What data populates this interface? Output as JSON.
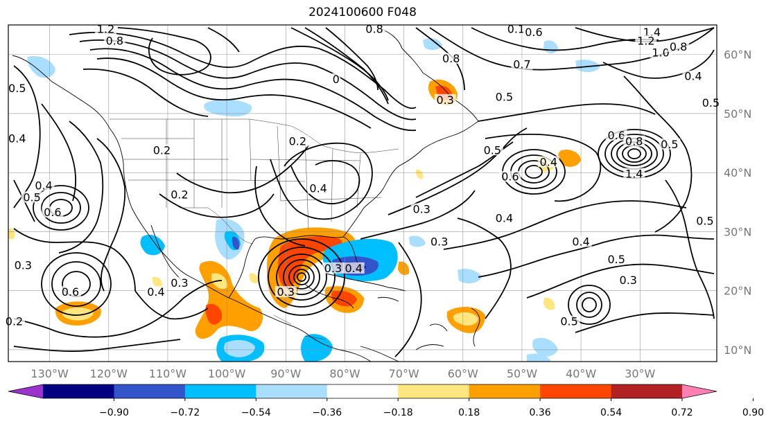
{
  "title": "2024100600 F048",
  "map": {
    "lon_ticks": [
      "130°W",
      "120°W",
      "110°W",
      "100°W",
      "90°W",
      "80°W",
      "70°W",
      "60°W",
      "50°W",
      "40°W",
      "30°W"
    ],
    "lat_ticks": [
      "60°N",
      "50°N",
      "40°N",
      "30°N",
      "20°N",
      "10°N"
    ],
    "lon_range": [
      -137,
      -17
    ],
    "lat_range": [
      8,
      65
    ],
    "gridlines": true,
    "contour_color": "#000000"
  },
  "contour_labels": [
    {
      "text": "1.2",
      "lon": -120.5,
      "lat": 64
    },
    {
      "text": "0.8",
      "lon": -119,
      "lat": 62
    },
    {
      "text": "0.5",
      "lon": -135.5,
      "lat": 54
    },
    {
      "text": "0.4",
      "lon": -135.5,
      "lat": 45.5
    },
    {
      "text": "0.4",
      "lon": -131,
      "lat": 37.5
    },
    {
      "text": "0.5",
      "lon": -133,
      "lat": 35.5
    },
    {
      "text": "0.6",
      "lon": -129.5,
      "lat": 33
    },
    {
      "text": "0.3",
      "lon": -134.5,
      "lat": 24
    },
    {
      "text": "0.6",
      "lon": -126.5,
      "lat": 19.5
    },
    {
      "text": "0.2",
      "lon": -136,
      "lat": 14.5
    },
    {
      "text": "0.3",
      "lon": -108,
      "lat": 21
    },
    {
      "text": "0.4",
      "lon": -112,
      "lat": 19.5
    },
    {
      "text": "0.2",
      "lon": -108,
      "lat": 36
    },
    {
      "text": "0.2",
      "lon": -111,
      "lat": 43.5
    },
    {
      "text": "0.2",
      "lon": -88,
      "lat": 45
    },
    {
      "text": "0.4",
      "lon": -84.5,
      "lat": 37
    },
    {
      "text": "0",
      "lon": -81.5,
      "lat": 55.5
    },
    {
      "text": "0.3",
      "lon": -82,
      "lat": 23.5
    },
    {
      "text": "0.4",
      "lon": -78.5,
      "lat": 23.5
    },
    {
      "text": "0.3",
      "lon": -90,
      "lat": 19.5
    },
    {
      "text": "0.8",
      "lon": -75,
      "lat": 64
    },
    {
      "text": "0.8",
      "lon": -62,
      "lat": 59
    },
    {
      "text": "0.3",
      "lon": -63,
      "lat": 52
    },
    {
      "text": "0.5",
      "lon": -53,
      "lat": 52.5
    },
    {
      "text": "0.3",
      "lon": -67,
      "lat": 33.5
    },
    {
      "text": "0.3",
      "lon": -64,
      "lat": 28
    },
    {
      "text": "0.4",
      "lon": -53,
      "lat": 32
    },
    {
      "text": "0.5",
      "lon": -55,
      "lat": 43.5
    },
    {
      "text": "0.6",
      "lon": -52,
      "lat": 39
    },
    {
      "text": "0.4",
      "lon": -45.5,
      "lat": 41.5
    },
    {
      "text": "0.1",
      "lon": -51,
      "lat": 64
    },
    {
      "text": "0.6",
      "lon": -48,
      "lat": 63.5
    },
    {
      "text": "0.7",
      "lon": -50,
      "lat": 58
    },
    {
      "text": "1.4",
      "lon": -28,
      "lat": 63.5
    },
    {
      "text": "1.2",
      "lon": -29,
      "lat": 62
    },
    {
      "text": "1.0",
      "lon": -26.5,
      "lat": 60
    },
    {
      "text": "0.8",
      "lon": -23.5,
      "lat": 61
    },
    {
      "text": "0.4",
      "lon": -21,
      "lat": 56
    },
    {
      "text": "0.5",
      "lon": -18,
      "lat": 51.5
    },
    {
      "text": "0.6",
      "lon": -34,
      "lat": 46
    },
    {
      "text": "0.8",
      "lon": -31,
      "lat": 45
    },
    {
      "text": "0.5",
      "lon": -25,
      "lat": 44.5
    },
    {
      "text": "1.4",
      "lon": -31,
      "lat": 39.5
    },
    {
      "text": "0.5",
      "lon": -19,
      "lat": 31.5
    },
    {
      "text": "0.4",
      "lon": -40,
      "lat": 28
    },
    {
      "text": "0.5",
      "lon": -34,
      "lat": 25
    },
    {
      "text": "0.3",
      "lon": -32,
      "lat": 21.5
    },
    {
      "text": "0.5",
      "lon": -42,
      "lat": 14.5
    }
  ],
  "colorbar": {
    "ticks": [
      "−0.90",
      "−0.72",
      "−0.54",
      "−0.36",
      "−0.18",
      "0.18",
      "0.36",
      "0.54",
      "0.72",
      "0.90"
    ],
    "colors": [
      "#9933cc",
      "#000080",
      "#3355cc",
      "#00bfff",
      "#aadeff",
      "#ffffff",
      "#ffe680",
      "#ffa000",
      "#ff4500",
      "#b22222",
      "#ff80b3"
    ],
    "extend": "both"
  }
}
